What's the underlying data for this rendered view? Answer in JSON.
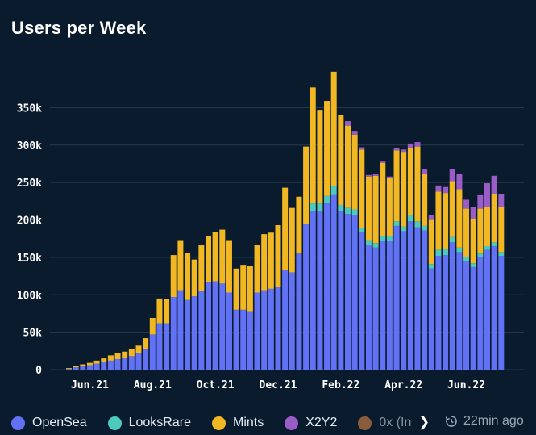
{
  "title": "Users per Week",
  "colors": {
    "background": "#0b1b2e",
    "opensea": "#6272f4",
    "looksrare": "#4dc9bd",
    "mints": "#f2b824",
    "x2y2": "#9a5cc6",
    "zerox": "#f0924a",
    "grid": "#2a3a4d"
  },
  "legend": {
    "items": [
      {
        "label": "OpenSea",
        "color": "#6272f4"
      },
      {
        "label": "LooksRare",
        "color": "#4dc9bd"
      },
      {
        "label": "Mints",
        "color": "#f2b824"
      },
      {
        "label": "X2Y2",
        "color": "#9a5cc6"
      },
      {
        "label": "0x (In",
        "color": "#f0924a"
      }
    ],
    "more_icon": "chevron-right-icon",
    "updated": "22min ago",
    "updated_icon": "refresh-clock-icon"
  },
  "chart_data": {
    "type": "bar",
    "stacked": true,
    "title": "Users per Week",
    "xlabel": "",
    "ylabel": "",
    "ylim": [
      0,
      400000
    ],
    "yticks": [
      0,
      50000,
      100000,
      150000,
      200000,
      250000,
      300000,
      350000
    ],
    "ytick_labels": [
      "0",
      "50k",
      "100k",
      "150k",
      "200k",
      "250k",
      "300k",
      "350k"
    ],
    "xtick_labels": [
      {
        "label": "Jun.21",
        "index": 3
      },
      {
        "label": "Aug.21",
        "index": 12
      },
      {
        "label": "Oct.21",
        "index": 21
      },
      {
        "label": "Dec.21",
        "index": 30
      },
      {
        "label": "Feb.22",
        "index": 39
      },
      {
        "label": "Apr.22",
        "index": 48
      },
      {
        "label": "Jun.22",
        "index": 57
      }
    ],
    "grid": true,
    "legend_position": "bottom",
    "series": [
      {
        "name": "OpenSea",
        "values": [
          1000,
          3000,
          5000,
          6000,
          8000,
          10000,
          12000,
          14000,
          16000,
          18000,
          22000,
          27000,
          47000,
          62000,
          62000,
          97000,
          106000,
          93000,
          98000,
          105000,
          117000,
          118000,
          115000,
          103000,
          80000,
          80000,
          78000,
          103000,
          106000,
          108000,
          110000,
          133000,
          130000,
          155000,
          195000,
          212000,
          212000,
          222000,
          233000,
          212000,
          208000,
          207000,
          183000,
          167000,
          163000,
          172000,
          172000,
          192000,
          185000,
          198000,
          190000,
          186000,
          135000,
          152000,
          153000,
          170000,
          157000,
          145000,
          137000,
          150000,
          160000,
          165000,
          152000
        ]
      },
      {
        "name": "LooksRare",
        "values": [
          0,
          0,
          0,
          0,
          0,
          0,
          0,
          0,
          0,
          0,
          0,
          0,
          0,
          0,
          0,
          0,
          0,
          0,
          0,
          0,
          0,
          0,
          0,
          0,
          0,
          0,
          0,
          0,
          0,
          0,
          0,
          0,
          0,
          0,
          0,
          10000,
          10000,
          10000,
          12000,
          8000,
          8000,
          7000,
          6000,
          6000,
          6000,
          6000,
          6000,
          6000,
          6000,
          8000,
          8000,
          6000,
          6000,
          8000,
          8000,
          7000,
          6000,
          5000,
          5000,
          5000,
          5000,
          5000,
          5000
        ]
      },
      {
        "name": "Mints",
        "values": [
          1000,
          2000,
          2000,
          3000,
          4000,
          5000,
          7000,
          8000,
          8000,
          9000,
          10000,
          15000,
          22000,
          33000,
          32000,
          56000,
          67000,
          63000,
          49000,
          61000,
          62000,
          66000,
          72000,
          70000,
          55000,
          60000,
          60000,
          64000,
          75000,
          75000,
          83000,
          110000,
          86000,
          76000,
          103000,
          155000,
          125000,
          127000,
          153000,
          120000,
          110000,
          100000,
          105000,
          85000,
          90000,
          98000,
          78000,
          95000,
          100000,
          90000,
          100000,
          70000,
          60000,
          78000,
          75000,
          75000,
          78000,
          65000,
          60000,
          60000,
          52000,
          65000,
          60000
        ]
      },
      {
        "name": "X2Y2",
        "values": [
          0,
          0,
          0,
          0,
          0,
          0,
          0,
          0,
          0,
          0,
          0,
          0,
          0,
          0,
          0,
          0,
          0,
          0,
          0,
          0,
          0,
          0,
          0,
          0,
          0,
          0,
          0,
          0,
          0,
          0,
          0,
          0,
          0,
          0,
          0,
          0,
          0,
          0,
          0,
          0,
          6000,
          5000,
          3000,
          2000,
          3000,
          2000,
          2000,
          3000,
          3000,
          6000,
          6000,
          6000,
          5000,
          8000,
          8000,
          16000,
          20000,
          12000,
          15000,
          18000,
          32000,
          24000,
          18000
        ]
      },
      {
        "name": "0x (In",
        "values": [
          0,
          0,
          0,
          0,
          0,
          0,
          0,
          0,
          0,
          0,
          0,
          0,
          0,
          0,
          0,
          0,
          0,
          0,
          0,
          0,
          0,
          0,
          0,
          0,
          0,
          0,
          0,
          0,
          0,
          0,
          0,
          0,
          0,
          0,
          0,
          0,
          0,
          0,
          0,
          0,
          0,
          0,
          0,
          0,
          0,
          0,
          0,
          0,
          0,
          0,
          0,
          0,
          0,
          0,
          0,
          0,
          0,
          0,
          0,
          0,
          0,
          0,
          0
        ]
      }
    ]
  }
}
